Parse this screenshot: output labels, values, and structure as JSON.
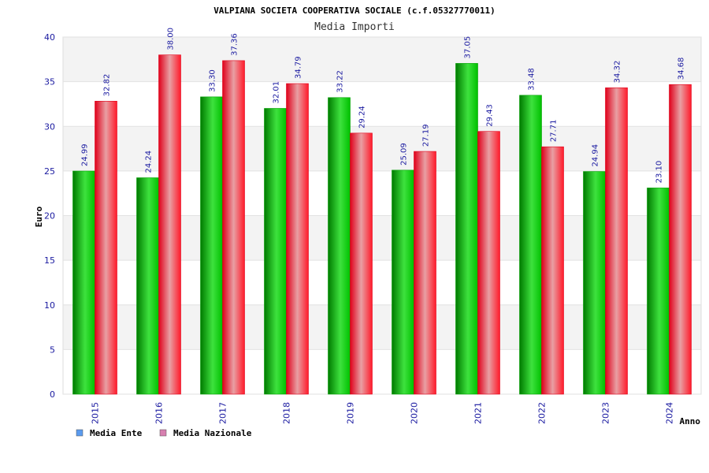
{
  "chart_data": {
    "type": "bar",
    "title": "VALPIANA SOCIETA COOPERATIVA SOCIALE (c.f.05327770011)",
    "subtitle": "Media Importi",
    "xlabel": "Anno",
    "ylabel": "Euro",
    "ylim": [
      0,
      40
    ],
    "yticks": [
      0,
      5,
      10,
      15,
      20,
      25,
      30,
      35,
      40
    ],
    "grid": true,
    "legend_position": "bottom-left",
    "categories": [
      "2015",
      "2016",
      "2017",
      "2018",
      "2019",
      "2020",
      "2021",
      "2022",
      "2023",
      "2024"
    ],
    "series": [
      {
        "name": "Media Ente",
        "color": "#00b000",
        "legend_color": "#5b9bef",
        "values": [
          24.99,
          24.24,
          33.3,
          32.01,
          33.22,
          25.09,
          37.05,
          33.48,
          24.94,
          23.1
        ],
        "labels": [
          "24.99",
          "24.24",
          "33.30",
          "32.01",
          "33.22",
          "25.09",
          "37.05",
          "33.48",
          "24.94",
          "23.10"
        ]
      },
      {
        "name": "Media Nazionale",
        "color": "#ff1a2a",
        "legend_color": "#d77fb0",
        "values": [
          32.82,
          38.0,
          37.36,
          34.79,
          29.24,
          27.19,
          29.43,
          27.71,
          34.32,
          34.68
        ],
        "labels": [
          "32.82",
          "38.00",
          "37.36",
          "34.79",
          "29.24",
          "27.19",
          "29.43",
          "27.71",
          "34.32",
          "34.68"
        ]
      }
    ]
  }
}
